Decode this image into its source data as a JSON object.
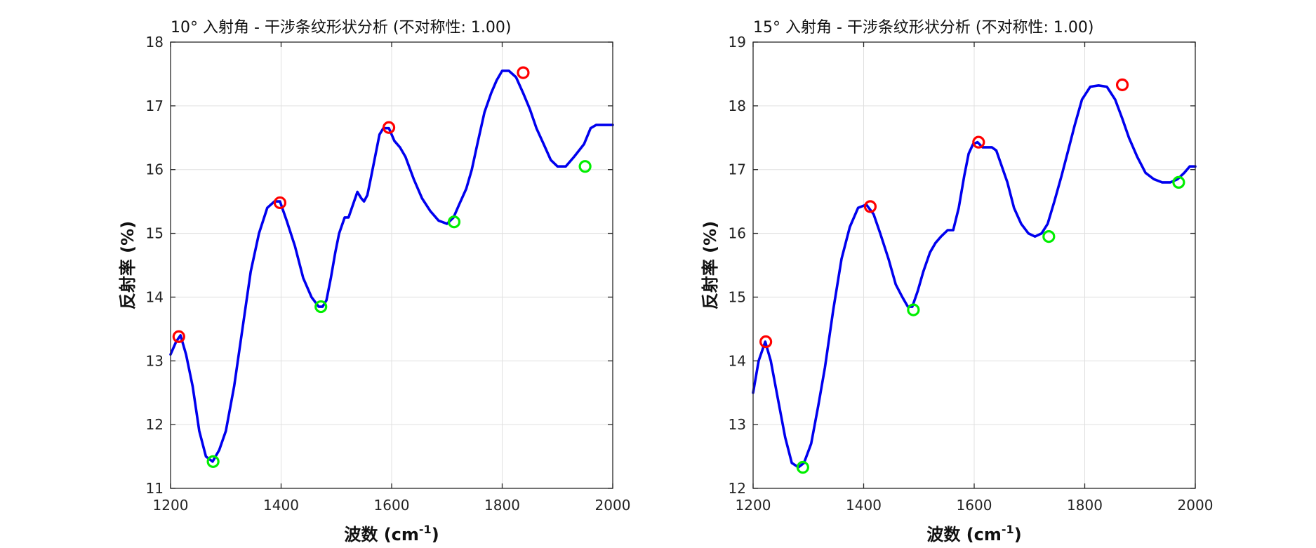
{
  "chart_data": [
    {
      "type": "line",
      "title": "10° 入射角 - 干涉条纹形状分析 (不对称性: 1.00)",
      "xlabel": "波数 (cm",
      "xlabel_sup": "-1",
      "xlabel_close": ")",
      "ylabel": "反射率 (%)",
      "xlim": [
        1200,
        2000
      ],
      "ylim": [
        11,
        18
      ],
      "xticks": [
        1200,
        1400,
        1600,
        1800,
        2000
      ],
      "yticks": [
        11,
        12,
        13,
        14,
        15,
        16,
        17,
        18
      ],
      "grid": true,
      "series": [
        {
          "name": "reflectance",
          "color": "#0000ee",
          "x": [
            1200,
            1210,
            1218,
            1228,
            1240,
            1252,
            1264,
            1276,
            1288,
            1300,
            1315,
            1330,
            1345,
            1360,
            1375,
            1388,
            1398,
            1410,
            1425,
            1440,
            1455,
            1468,
            1475,
            1482,
            1490,
            1498,
            1505,
            1515,
            1522,
            1530,
            1538,
            1545,
            1550,
            1556,
            1562,
            1570,
            1578,
            1585,
            1595,
            1605,
            1615,
            1625,
            1640,
            1655,
            1670,
            1685,
            1700,
            1712,
            1722,
            1735,
            1745,
            1755,
            1768,
            1780,
            1790,
            1800,
            1812,
            1825,
            1838,
            1850,
            1862,
            1875,
            1888,
            1900,
            1915,
            1930,
            1948,
            1960,
            1970,
            1980,
            1990,
            2000
          ],
          "values": [
            13.1,
            13.3,
            13.4,
            13.1,
            12.6,
            11.9,
            11.5,
            11.42,
            11.6,
            11.9,
            12.6,
            13.5,
            14.4,
            15.0,
            15.4,
            15.5,
            15.5,
            15.2,
            14.8,
            14.3,
            14.0,
            13.85,
            13.85,
            13.95,
            14.3,
            14.7,
            15.0,
            15.25,
            15.25,
            15.45,
            15.65,
            15.55,
            15.5,
            15.6,
            15.85,
            16.2,
            16.55,
            16.65,
            16.65,
            16.45,
            16.35,
            16.2,
            15.85,
            15.55,
            15.35,
            15.2,
            15.15,
            15.25,
            15.45,
            15.7,
            16.0,
            16.4,
            16.9,
            17.2,
            17.4,
            17.55,
            17.55,
            17.45,
            17.2,
            16.95,
            16.65,
            16.4,
            16.15,
            16.05,
            16.05,
            16.2,
            16.4,
            16.65,
            16.7,
            16.7,
            16.7,
            16.7
          ]
        }
      ],
      "peaks": {
        "color": "#ff0000",
        "x": [
          1215,
          1398,
          1595,
          1838
        ],
        "y": [
          13.38,
          15.48,
          16.66,
          17.52
        ]
      },
      "valleys": {
        "color": "#00ee00",
        "x": [
          1277,
          1472,
          1713,
          1950
        ],
        "y": [
          11.42,
          13.85,
          15.18,
          16.05
        ]
      }
    },
    {
      "type": "line",
      "title": "15° 入射角 - 干涉条纹形状分析 (不对称性: 1.00)",
      "xlabel": "波数 (cm",
      "xlabel_sup": "-1",
      "xlabel_close": ")",
      "ylabel": "反射率 (%)",
      "xlim": [
        1200,
        2000
      ],
      "ylim": [
        12,
        19
      ],
      "xticks": [
        1200,
        1400,
        1600,
        1800,
        2000
      ],
      "yticks": [
        12,
        13,
        14,
        15,
        16,
        17,
        18,
        19
      ],
      "grid": true,
      "series": [
        {
          "name": "reflectance",
          "color": "#0000ee",
          "x": [
            1200,
            1210,
            1222,
            1232,
            1245,
            1258,
            1270,
            1282,
            1292,
            1305,
            1318,
            1330,
            1345,
            1360,
            1375,
            1390,
            1405,
            1418,
            1430,
            1445,
            1458,
            1470,
            1480,
            1488,
            1498,
            1508,
            1520,
            1530,
            1540,
            1552,
            1562,
            1572,
            1582,
            1590,
            1598,
            1606,
            1615,
            1625,
            1632,
            1640,
            1650,
            1660,
            1672,
            1685,
            1698,
            1710,
            1722,
            1733,
            1745,
            1758,
            1770,
            1782,
            1795,
            1810,
            1825,
            1840,
            1855,
            1868,
            1880,
            1895,
            1910,
            1925,
            1940,
            1955,
            1968,
            1980,
            1990,
            2000
          ],
          "values": [
            13.5,
            14.0,
            14.3,
            14.0,
            13.4,
            12.8,
            12.4,
            12.33,
            12.4,
            12.7,
            13.3,
            13.9,
            14.8,
            15.6,
            16.1,
            16.4,
            16.45,
            16.3,
            16.0,
            15.6,
            15.2,
            15.0,
            14.85,
            14.85,
            15.1,
            15.4,
            15.7,
            15.85,
            15.95,
            16.05,
            16.05,
            16.4,
            16.9,
            17.25,
            17.4,
            17.43,
            17.35,
            17.35,
            17.35,
            17.3,
            17.05,
            16.8,
            16.4,
            16.15,
            16.0,
            15.95,
            16.0,
            16.15,
            16.5,
            16.9,
            17.3,
            17.7,
            18.1,
            18.3,
            18.32,
            18.3,
            18.1,
            17.8,
            17.5,
            17.2,
            16.95,
            16.85,
            16.8,
            16.8,
            16.85,
            16.95,
            17.05,
            17.05
          ]
        }
      ],
      "peaks": {
        "color": "#ff0000",
        "x": [
          1223,
          1412,
          1608,
          1868
        ],
        "y": [
          14.3,
          16.42,
          17.43,
          18.33
        ]
      },
      "valleys": {
        "color": "#00ee00",
        "x": [
          1290,
          1490,
          1735,
          1970
        ],
        "y": [
          12.33,
          14.8,
          15.95,
          16.8
        ]
      }
    }
  ]
}
